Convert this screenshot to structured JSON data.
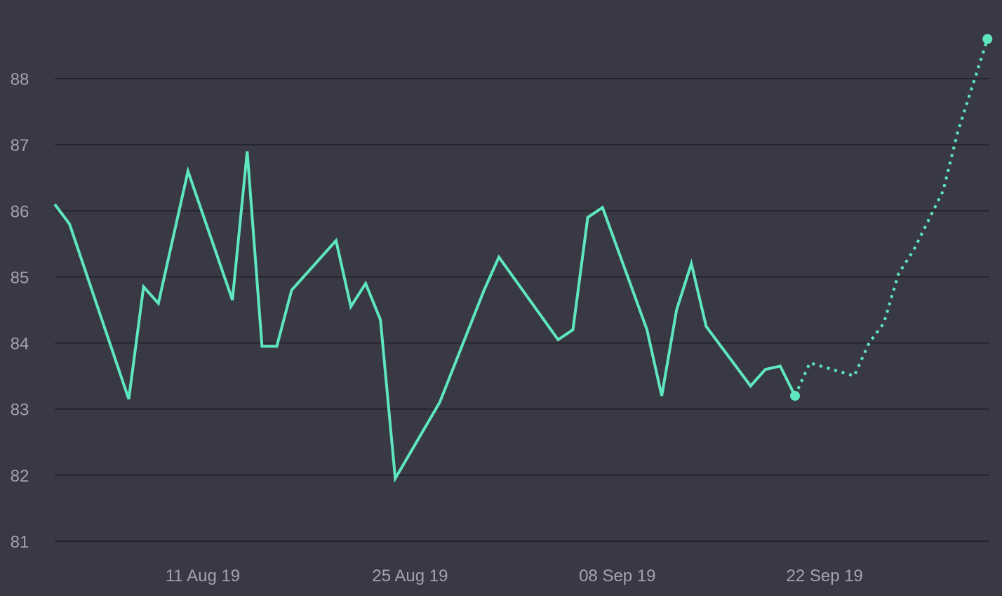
{
  "chart_data": {
    "type": "line",
    "title": "",
    "xlabel": "",
    "ylabel": "",
    "ylim": [
      81,
      88.6
    ],
    "y_ticks": [
      81,
      82,
      83,
      84,
      85,
      86,
      87,
      88
    ],
    "x_ticks": [
      {
        "date": "2019-08-11",
        "label": "11 Aug 19"
      },
      {
        "date": "2019-08-25",
        "label": "25 Aug 19"
      },
      {
        "date": "2019-09-08",
        "label": "08 Sep 19"
      },
      {
        "date": "2019-09-22",
        "label": "22 Sep 19"
      }
    ],
    "grid": true,
    "legend": "none",
    "colors": {
      "background": "#393945",
      "grid": "#24242c",
      "line": "#5ee7bf",
      "tick_text": "#a3a3ad"
    },
    "series": [
      {
        "style": "solid",
        "points": [
          {
            "x": "2019-08-01",
            "y": 86.1
          },
          {
            "x": "2019-08-02",
            "y": 85.8
          },
          {
            "x": "2019-08-06",
            "y": 83.15
          },
          {
            "x": "2019-08-07",
            "y": 84.85
          },
          {
            "x": "2019-08-08",
            "y": 84.6
          },
          {
            "x": "2019-08-10",
            "y": 86.6
          },
          {
            "x": "2019-08-13",
            "y": 84.65
          },
          {
            "x": "2019-08-14",
            "y": 86.9
          },
          {
            "x": "2019-08-15",
            "y": 83.95
          },
          {
            "x": "2019-08-16",
            "y": 83.95
          },
          {
            "x": "2019-08-17",
            "y": 84.8
          },
          {
            "x": "2019-08-20",
            "y": 85.55
          },
          {
            "x": "2019-08-21",
            "y": 84.55
          },
          {
            "x": "2019-08-22",
            "y": 84.9
          },
          {
            "x": "2019-08-23",
            "y": 84.35
          },
          {
            "x": "2019-08-24",
            "y": 81.95
          },
          {
            "x": "2019-08-27",
            "y": 83.1
          },
          {
            "x": "2019-08-30",
            "y": 84.8
          },
          {
            "x": "2019-08-31",
            "y": 85.3
          },
          {
            "x": "2019-09-04",
            "y": 84.05
          },
          {
            "x": "2019-09-05",
            "y": 84.2
          },
          {
            "x": "2019-09-06",
            "y": 85.9
          },
          {
            "x": "2019-09-07",
            "y": 86.05
          },
          {
            "x": "2019-09-10",
            "y": 84.2
          },
          {
            "x": "2019-09-11",
            "y": 83.2
          },
          {
            "x": "2019-09-12",
            "y": 84.5
          },
          {
            "x": "2019-09-13",
            "y": 85.2
          },
          {
            "x": "2019-09-14",
            "y": 84.25
          },
          {
            "x": "2019-09-17",
            "y": 83.35
          },
          {
            "x": "2019-09-18",
            "y": 83.6
          },
          {
            "x": "2019-09-19",
            "y": 83.65
          },
          {
            "x": "2019-09-20",
            "y": 83.2
          }
        ]
      },
      {
        "style": "dotted",
        "points": [
          {
            "x": "2019-09-20",
            "y": 83.2
          },
          {
            "x": "2019-09-21",
            "y": 83.7
          },
          {
            "x": "2019-09-24",
            "y": 83.5
          },
          {
            "x": "2019-09-25",
            "y": 84.0
          },
          {
            "x": "2019-09-26",
            "y": 84.3
          },
          {
            "x": "2019-09-27",
            "y": 85.05
          },
          {
            "x": "2019-09-28",
            "y": 85.4
          },
          {
            "x": "2019-09-30",
            "y": 86.3
          },
          {
            "x": "2019-10-01",
            "y": 87.2
          },
          {
            "x": "2019-10-03",
            "y": 88.6
          }
        ]
      }
    ],
    "highlighted_points": [
      {
        "x": "2019-09-20",
        "y": 83.2
      },
      {
        "x": "2019-10-03",
        "y": 88.6
      }
    ]
  }
}
